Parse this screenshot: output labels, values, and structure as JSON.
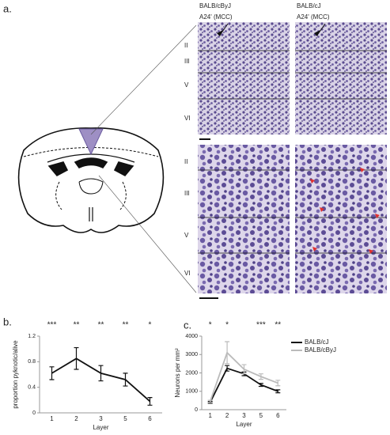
{
  "panels": [
    "a.",
    "b.",
    "c."
  ],
  "histology": {
    "strains": [
      "BALB/cByJ",
      "BALB/cJ"
    ],
    "region": "A24' (MCC)",
    "layers": [
      "II",
      "III",
      "V",
      "VI"
    ]
  },
  "chart_data": [
    {
      "type": "line",
      "ylabel": "proportion pyknotic/alive",
      "xlabel": "Layer",
      "categories": [
        "1",
        "2",
        "3",
        "5",
        "6"
      ],
      "series": [
        {
          "color": "#111111",
          "values": [
            0.62,
            0.85,
            0.62,
            0.52,
            0.18
          ],
          "errors": [
            0.1,
            0.17,
            0.12,
            0.1,
            0.06
          ]
        }
      ],
      "ylim": [
        0,
        1.2
      ],
      "yticks": [
        0,
        0.4,
        0.8,
        1.2
      ],
      "significance": [
        "***",
        "**",
        "**",
        "**",
        "*"
      ]
    },
    {
      "type": "line",
      "ylabel": "Neurons per mm²",
      "xlabel": "Layer",
      "categories": [
        "1",
        "2",
        "3",
        "5",
        "6"
      ],
      "series": [
        {
          "name": "BALB/cJ",
          "color": "#111111",
          "values": [
            400,
            2250,
            1950,
            1350,
            1000
          ],
          "errors": [
            50,
            150,
            100,
            80,
            80
          ]
        },
        {
          "name": "BALB/cByJ",
          "color": "#bbbbbb",
          "values": [
            450,
            3100,
            2200,
            1800,
            1450
          ],
          "errors": [
            60,
            600,
            250,
            150,
            150
          ]
        }
      ],
      "ylim": [
        0,
        4000
      ],
      "yticks": [
        0,
        1000,
        2000,
        3000,
        4000
      ],
      "legend": "upper right",
      "significance": [
        "*",
        "*",
        null,
        "***",
        "**"
      ]
    }
  ]
}
